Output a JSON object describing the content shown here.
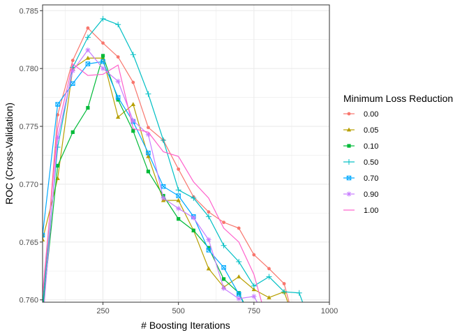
{
  "chart_data": {
    "type": "line",
    "xlabel": "# Boosting Iterations",
    "ylabel": "ROC (Cross-Validation)",
    "xlim": [
      50,
      1000
    ],
    "ylim": [
      0.7598,
      0.7855
    ],
    "x_ticks": [
      250,
      500,
      750,
      1000
    ],
    "y_ticks": [
      0.76,
      0.765,
      0.77,
      0.775,
      0.78,
      0.785
    ],
    "x_tick_labels": [
      "250",
      "500",
      "750",
      "1000"
    ],
    "y_tick_labels": [
      "0.760",
      "0.765",
      "0.770",
      "0.775",
      "0.780",
      "0.785"
    ],
    "grid": true,
    "legend": {
      "title": "Minimum Loss Reduction",
      "position": "right"
    },
    "series": [
      {
        "name": "0.00",
        "color": "#F8766D",
        "marker": "circle",
        "x": [
          50,
          100,
          150,
          200,
          250,
          300,
          350,
          400,
          450,
          500,
          550,
          600,
          650,
          700,
          750,
          800,
          850,
          900
        ],
        "y": [
          0.7595,
          0.776,
          0.7807,
          0.7835,
          0.7822,
          0.781,
          0.7788,
          0.7749,
          0.7738,
          0.7713,
          0.7689,
          0.7676,
          0.7667,
          0.7662,
          0.7639,
          0.7627,
          0.7614,
          0.7565
        ]
      },
      {
        "name": "0.05",
        "color": "#B79F00",
        "marker": "triangle",
        "x": [
          50,
          100,
          150,
          200,
          250,
          300,
          350,
          400,
          450,
          500,
          550,
          600,
          650,
          700,
          750,
          800,
          850,
          900
        ],
        "y": [
          0.7652,
          0.7705,
          0.78,
          0.7809,
          0.7809,
          0.7758,
          0.7769,
          0.7724,
          0.7686,
          0.7686,
          0.766,
          0.7627,
          0.7611,
          0.762,
          0.7609,
          0.7602,
          0.7607,
          0.757
        ]
      },
      {
        "name": "0.10",
        "color": "#00BA38",
        "marker": "square",
        "x": [
          50,
          100,
          150,
          200,
          250,
          300,
          350,
          400,
          450,
          500,
          550,
          600,
          650,
          700,
          750
        ],
        "y": [
          0.759,
          0.7716,
          0.7745,
          0.7766,
          0.7811,
          0.7773,
          0.7746,
          0.7711,
          0.769,
          0.767,
          0.766,
          0.7645,
          0.7618,
          0.7606,
          0.758
        ]
      },
      {
        "name": "0.50",
        "color": "#00BFC4",
        "marker": "plus",
        "x": [
          50,
          100,
          150,
          200,
          250,
          300,
          350,
          400,
          450,
          500,
          550,
          600,
          650,
          700,
          750,
          800,
          850,
          900,
          950
        ],
        "y": [
          0.7595,
          0.7732,
          0.7801,
          0.7827,
          0.7843,
          0.7838,
          0.7812,
          0.7778,
          0.7738,
          0.7695,
          0.7688,
          0.7672,
          0.7647,
          0.7633,
          0.7612,
          0.762,
          0.7607,
          0.7606,
          0.757
        ]
      },
      {
        "name": "0.70",
        "color": "#00A9FF",
        "marker": "box",
        "x": [
          50,
          100,
          150,
          200,
          250,
          300,
          350,
          400,
          450,
          500,
          550,
          600,
          650,
          700,
          750
        ],
        "y": [
          0.7656,
          0.7769,
          0.7787,
          0.7804,
          0.7806,
          0.7775,
          0.7754,
          0.7727,
          0.7698,
          0.769,
          0.7672,
          0.7643,
          0.7628,
          0.7605,
          0.758
        ]
      },
      {
        "name": "0.90",
        "color": "#C77CFF",
        "marker": "asterisk",
        "x": [
          50,
          100,
          150,
          200,
          250,
          300,
          350,
          400,
          450,
          500,
          550,
          600,
          650,
          700,
          750,
          800
        ],
        "y": [
          0.758,
          0.774,
          0.7798,
          0.7816,
          0.78,
          0.7789,
          0.7755,
          0.7743,
          0.7688,
          0.7679,
          0.7671,
          0.7652,
          0.761,
          0.7601,
          0.7603,
          0.758
        ]
      },
      {
        "name": "1.00",
        "color": "#FF61CC",
        "marker": "none",
        "x": [
          50,
          100,
          150,
          200,
          250,
          300,
          350,
          400,
          450,
          500,
          550,
          600,
          650,
          700,
          750,
          800
        ],
        "y": [
          0.7605,
          0.7748,
          0.7804,
          0.7794,
          0.7795,
          0.7803,
          0.7748,
          0.7745,
          0.7728,
          0.7724,
          0.7702,
          0.7688,
          0.7662,
          0.765,
          0.7622,
          0.7575
        ]
      }
    ]
  }
}
